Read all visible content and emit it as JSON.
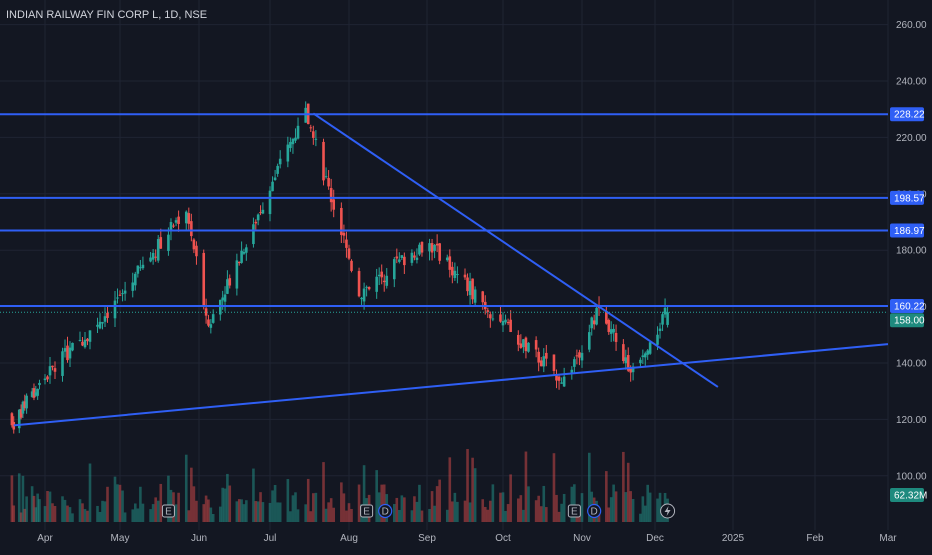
{
  "header": {
    "symbol_title": "INDIAN RAILWAY FIN CORP L, 1D, NSE"
  },
  "colors": {
    "background": "#131722",
    "grid": "#1f2433",
    "up": "#26a69a",
    "down": "#ef5350",
    "line": "#2f5ff5",
    "axis_text": "#b2b5be"
  },
  "chart_data": {
    "type": "candlestick",
    "title": "INDIAN RAILWAY FIN CORP L, 1D, NSE",
    "price_axis": {
      "ylim": [
        98,
        270
      ],
      "ticks": [
        "260.00",
        "240.00",
        "220.00",
        "200.00",
        "180.00",
        "160.00",
        "140.00",
        "120.00",
        "100.00"
      ]
    },
    "time_axis": {
      "labels": [
        "Apr",
        "May",
        "Jun",
        "Jul",
        "Aug",
        "Sep",
        "Oct",
        "Nov",
        "Dec",
        "2025",
        "Feb",
        "Mar"
      ]
    },
    "horizontal_levels": [
      {
        "value": 228.22,
        "label": "228.22"
      },
      {
        "value": 198.57,
        "label": "198.57"
      },
      {
        "value": 186.97,
        "label": "186.97"
      },
      {
        "value": 160.22,
        "label": "160.22"
      }
    ],
    "last_price": {
      "value": 158.0,
      "label": "158.00"
    },
    "volume_label": "62.32M",
    "trendlines": [
      {
        "name": "descending-resistance",
        "from": {
          "date": "2024-07-18",
          "price": 228.5
        },
        "to": {
          "date": "2024-12-26",
          "price": 131.5
        }
      },
      {
        "name": "ascending-support",
        "from": {
          "date": "2024-03-15",
          "price": 117.9
        },
        "to": {
          "date": "2025-03-01",
          "price": 146.7
        }
      }
    ],
    "event_markers": [
      {
        "type": "E",
        "date": "2024-05-20"
      },
      {
        "type": "E",
        "date": "2024-08-08"
      },
      {
        "type": "D",
        "date": "2024-08-13"
      },
      {
        "type": "D",
        "date": "2024-08-13"
      },
      {
        "type": "E",
        "date": "2024-10-29"
      },
      {
        "type": "D",
        "date": "2024-11-06"
      },
      {
        "type": "flash",
        "date": "2024-12-06"
      }
    ],
    "key_prices": [
      {
        "date": "2024-03-14",
        "price": 118
      },
      {
        "date": "2024-04-30",
        "price": 162
      },
      {
        "date": "2024-05-27",
        "price": 195
      },
      {
        "date": "2024-06-05",
        "price": 153
      },
      {
        "date": "2024-07-15",
        "price": 229
      },
      {
        "date": "2024-08-05",
        "price": 165
      },
      {
        "date": "2024-09-01",
        "price": 183
      },
      {
        "date": "2024-10-07",
        "price": 148
      },
      {
        "date": "2024-10-25",
        "price": 134
      },
      {
        "date": "2024-11-08",
        "price": 159
      },
      {
        "date": "2024-11-21",
        "price": 138
      },
      {
        "date": "2024-12-06",
        "price": 158
      }
    ]
  }
}
